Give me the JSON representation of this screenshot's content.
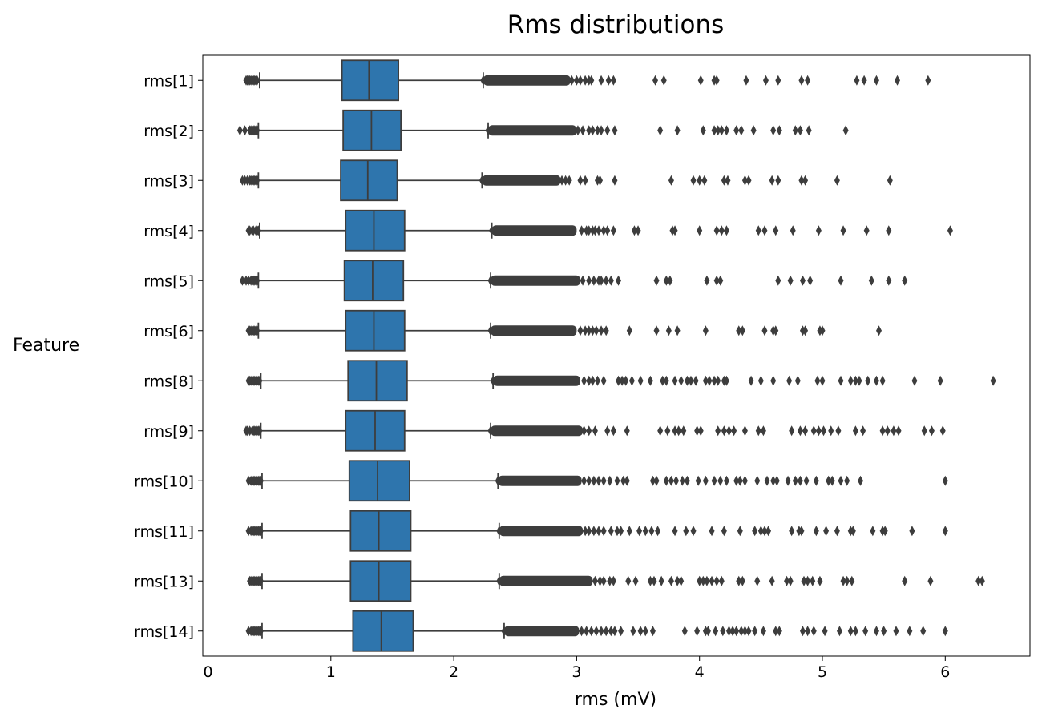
{
  "chart_data": {
    "type": "boxplot",
    "orientation": "horizontal",
    "title": "Rms distributions",
    "xlabel": "rms (mV)",
    "ylabel": "Feature",
    "xlim": [
      -0.05,
      6.7
    ],
    "xticks": [
      0,
      1,
      2,
      3,
      4,
      5,
      6
    ],
    "grid": false,
    "legend": "none",
    "colors": {
      "box": "#2e75ad",
      "line": "#3d3d3d"
    },
    "series": [
      {
        "category": "rms[1]",
        "whisker_low": 0.42,
        "q1": 1.09,
        "median": 1.31,
        "q3": 1.55,
        "whisker_high": 2.24,
        "outliers_low": [
          0.31,
          0.32,
          0.33,
          0.34,
          0.35,
          0.36,
          0.37,
          0.38,
          0.39,
          0.4
        ],
        "outliers_dense_high": [
          2.24,
          2.95
        ],
        "outliers_high": [
          2.96,
          3.0,
          3.03,
          3.07,
          3.1,
          3.12,
          3.2,
          3.26,
          3.3,
          3.64,
          3.71,
          4.01,
          4.12,
          4.14,
          4.38,
          4.54,
          4.64,
          4.83,
          4.88,
          5.28,
          5.34,
          5.44,
          5.61,
          5.86
        ]
      },
      {
        "category": "rms[2]",
        "whisker_low": 0.41,
        "q1": 1.1,
        "median": 1.33,
        "q3": 1.57,
        "whisker_high": 2.28,
        "outliers_low": [
          0.26,
          0.3,
          0.34,
          0.35,
          0.36,
          0.37,
          0.38,
          0.39,
          0.4
        ],
        "outliers_dense_high": [
          2.28,
          3.0
        ],
        "outliers_high": [
          3.01,
          3.05,
          3.1,
          3.13,
          3.17,
          3.2,
          3.25,
          3.31,
          3.68,
          3.82,
          4.03,
          4.12,
          4.15,
          4.18,
          4.22,
          4.3,
          4.34,
          4.44,
          4.6,
          4.65,
          4.78,
          4.82,
          4.89,
          5.19
        ]
      },
      {
        "category": "rms[3]",
        "whisker_low": 0.41,
        "q1": 1.08,
        "median": 1.3,
        "q3": 1.54,
        "whisker_high": 2.23,
        "outliers_low": [
          0.28,
          0.3,
          0.32,
          0.34,
          0.35,
          0.36,
          0.37,
          0.38,
          0.39,
          0.4
        ],
        "outliers_dense_high": [
          2.23,
          2.87
        ],
        "outliers_high": [
          2.88,
          2.91,
          2.94,
          3.03,
          3.07,
          3.17,
          3.19,
          3.31,
          3.77,
          3.95,
          4.0,
          4.04,
          4.2,
          4.23,
          4.37,
          4.4,
          4.59,
          4.64,
          4.83,
          4.86,
          5.12,
          5.55
        ]
      },
      {
        "category": "rms[4]",
        "whisker_low": 0.42,
        "q1": 1.12,
        "median": 1.35,
        "q3": 1.6,
        "whisker_high": 2.31,
        "outliers_low": [
          0.33,
          0.34,
          0.36,
          0.37,
          0.39,
          0.4,
          0.41
        ],
        "outliers_dense_high": [
          2.31,
          3.0
        ],
        "outliers_high": [
          3.04,
          3.08,
          3.1,
          3.13,
          3.15,
          3.18,
          3.22,
          3.25,
          3.3,
          3.47,
          3.5,
          3.78,
          3.8,
          4.0,
          4.14,
          4.18,
          4.22,
          4.48,
          4.53,
          4.62,
          4.76,
          4.97,
          5.17,
          5.36,
          5.54,
          6.04
        ]
      },
      {
        "category": "rms[5]",
        "whisker_low": 0.41,
        "q1": 1.11,
        "median": 1.34,
        "q3": 1.59,
        "whisker_high": 2.3,
        "outliers_low": [
          0.28,
          0.31,
          0.33,
          0.35,
          0.36,
          0.37,
          0.38,
          0.39,
          0.4
        ],
        "outliers_dense_high": [
          2.3,
          3.03
        ],
        "outliers_high": [
          3.05,
          3.1,
          3.14,
          3.18,
          3.2,
          3.24,
          3.28,
          3.34,
          3.65,
          3.73,
          3.76,
          4.06,
          4.14,
          4.17,
          4.64,
          4.74,
          4.84,
          4.9,
          5.15,
          5.4,
          5.54,
          5.67
        ]
      },
      {
        "category": "rms[6]",
        "whisker_low": 0.41,
        "q1": 1.12,
        "median": 1.35,
        "q3": 1.6,
        "whisker_high": 2.3,
        "outliers_low": [
          0.33,
          0.34,
          0.35,
          0.36,
          0.37,
          0.38,
          0.39,
          0.4
        ],
        "outliers_dense_high": [
          2.3,
          3.0
        ],
        "outliers_high": [
          3.03,
          3.07,
          3.1,
          3.13,
          3.16,
          3.2,
          3.24,
          3.43,
          3.65,
          3.75,
          3.82,
          4.05,
          4.32,
          4.35,
          4.53,
          4.6,
          4.62,
          4.84,
          4.86,
          4.98,
          5.0,
          5.46
        ]
      },
      {
        "category": "rms[8]",
        "whisker_low": 0.43,
        "q1": 1.14,
        "median": 1.37,
        "q3": 1.62,
        "whisker_high": 2.32,
        "outliers_low": [
          0.33,
          0.34,
          0.35,
          0.36,
          0.37,
          0.38,
          0.39,
          0.4,
          0.41,
          0.42
        ],
        "outliers_dense_high": [
          2.32,
          3.03
        ],
        "outliers_high": [
          3.06,
          3.1,
          3.13,
          3.17,
          3.22,
          3.34,
          3.37,
          3.4,
          3.45,
          3.52,
          3.6,
          3.7,
          3.73,
          3.8,
          3.85,
          3.9,
          3.93,
          3.97,
          4.05,
          4.08,
          4.12,
          4.15,
          4.2,
          4.22,
          4.42,
          4.5,
          4.6,
          4.73,
          4.8,
          4.96,
          5.0,
          5.15,
          5.23,
          5.27,
          5.3,
          5.37,
          5.44,
          5.49,
          5.75,
          5.96,
          6.39
        ]
      },
      {
        "category": "rms[9]",
        "whisker_low": 0.43,
        "q1": 1.12,
        "median": 1.36,
        "q3": 1.6,
        "whisker_high": 2.3,
        "outliers_low": [
          0.31,
          0.32,
          0.34,
          0.36,
          0.37,
          0.38,
          0.39,
          0.4,
          0.41,
          0.42
        ],
        "outliers_dense_high": [
          2.3,
          3.05
        ],
        "outliers_high": [
          3.06,
          3.1,
          3.15,
          3.25,
          3.3,
          3.41,
          3.68,
          3.74,
          3.8,
          3.83,
          3.87,
          3.98,
          4.01,
          4.15,
          4.2,
          4.24,
          4.28,
          4.37,
          4.48,
          4.52,
          4.75,
          4.82,
          4.86,
          4.93,
          4.97,
          5.01,
          5.07,
          5.13,
          5.27,
          5.33,
          5.49,
          5.53,
          5.58,
          5.62,
          5.83,
          5.89,
          5.98
        ]
      },
      {
        "category": "rms[10]",
        "whisker_low": 0.44,
        "q1": 1.15,
        "median": 1.38,
        "q3": 1.64,
        "whisker_high": 2.36,
        "outliers_low": [
          0.33,
          0.35,
          0.36,
          0.37,
          0.38,
          0.39,
          0.4,
          0.41,
          0.42,
          0.43
        ],
        "outliers_dense_high": [
          2.36,
          3.04
        ],
        "outliers_high": [
          3.06,
          3.1,
          3.14,
          3.18,
          3.22,
          3.27,
          3.33,
          3.38,
          3.41,
          3.62,
          3.65,
          3.73,
          3.77,
          3.81,
          3.86,
          3.9,
          3.99,
          4.05,
          4.12,
          4.17,
          4.22,
          4.3,
          4.33,
          4.37,
          4.47,
          4.55,
          4.6,
          4.63,
          4.72,
          4.78,
          4.82,
          4.87,
          4.95,
          5.05,
          5.08,
          5.15,
          5.2,
          5.31,
          6.0
        ]
      },
      {
        "category": "rms[11]",
        "whisker_low": 0.44,
        "q1": 1.16,
        "median": 1.39,
        "q3": 1.65,
        "whisker_high": 2.37,
        "outliers_low": [
          0.33,
          0.35,
          0.36,
          0.37,
          0.38,
          0.39,
          0.4,
          0.41,
          0.42,
          0.43
        ],
        "outliers_dense_high": [
          2.37,
          3.05
        ],
        "outliers_high": [
          3.07,
          3.1,
          3.14,
          3.18,
          3.22,
          3.28,
          3.33,
          3.36,
          3.43,
          3.51,
          3.56,
          3.61,
          3.66,
          3.8,
          3.89,
          3.95,
          4.1,
          4.2,
          4.33,
          4.45,
          4.5,
          4.53,
          4.56,
          4.75,
          4.81,
          4.83,
          4.95,
          5.03,
          5.12,
          5.23,
          5.25,
          5.41,
          5.49,
          5.51,
          5.73,
          6.0
        ]
      },
      {
        "category": "rms[13]",
        "whisker_low": 0.44,
        "q1": 1.16,
        "median": 1.39,
        "q3": 1.65,
        "whisker_high": 2.37,
        "outliers_low": [
          0.34,
          0.35,
          0.36,
          0.37,
          0.38,
          0.39,
          0.4,
          0.41,
          0.42,
          0.43
        ],
        "outliers_dense_high": [
          2.37,
          3.13
        ],
        "outliers_high": [
          3.15,
          3.19,
          3.22,
          3.27,
          3.3,
          3.42,
          3.48,
          3.6,
          3.63,
          3.69,
          3.77,
          3.82,
          3.85,
          4.0,
          4.03,
          4.06,
          4.1,
          4.14,
          4.18,
          4.32,
          4.35,
          4.47,
          4.59,
          4.71,
          4.74,
          4.85,
          4.88,
          4.92,
          4.98,
          5.17,
          5.2,
          5.24,
          5.67,
          5.88,
          6.27,
          6.3
        ]
      },
      {
        "category": "rms[14]",
        "whisker_low": 0.44,
        "q1": 1.18,
        "median": 1.41,
        "q3": 1.67,
        "whisker_high": 2.41,
        "outliers_low": [
          0.33,
          0.35,
          0.36,
          0.37,
          0.38,
          0.39,
          0.4,
          0.41,
          0.42,
          0.43
        ],
        "outliers_dense_high": [
          2.41,
          3.02
        ],
        "outliers_high": [
          3.04,
          3.08,
          3.12,
          3.16,
          3.2,
          3.24,
          3.28,
          3.31,
          3.36,
          3.46,
          3.52,
          3.56,
          3.62,
          3.88,
          3.98,
          4.05,
          4.07,
          4.13,
          4.19,
          4.24,
          4.27,
          4.3,
          4.34,
          4.37,
          4.4,
          4.45,
          4.52,
          4.62,
          4.65,
          4.84,
          4.88,
          4.93,
          5.02,
          5.14,
          5.23,
          5.27,
          5.35,
          5.44,
          5.5,
          5.6,
          5.71,
          5.82,
          6.0
        ]
      }
    ]
  }
}
